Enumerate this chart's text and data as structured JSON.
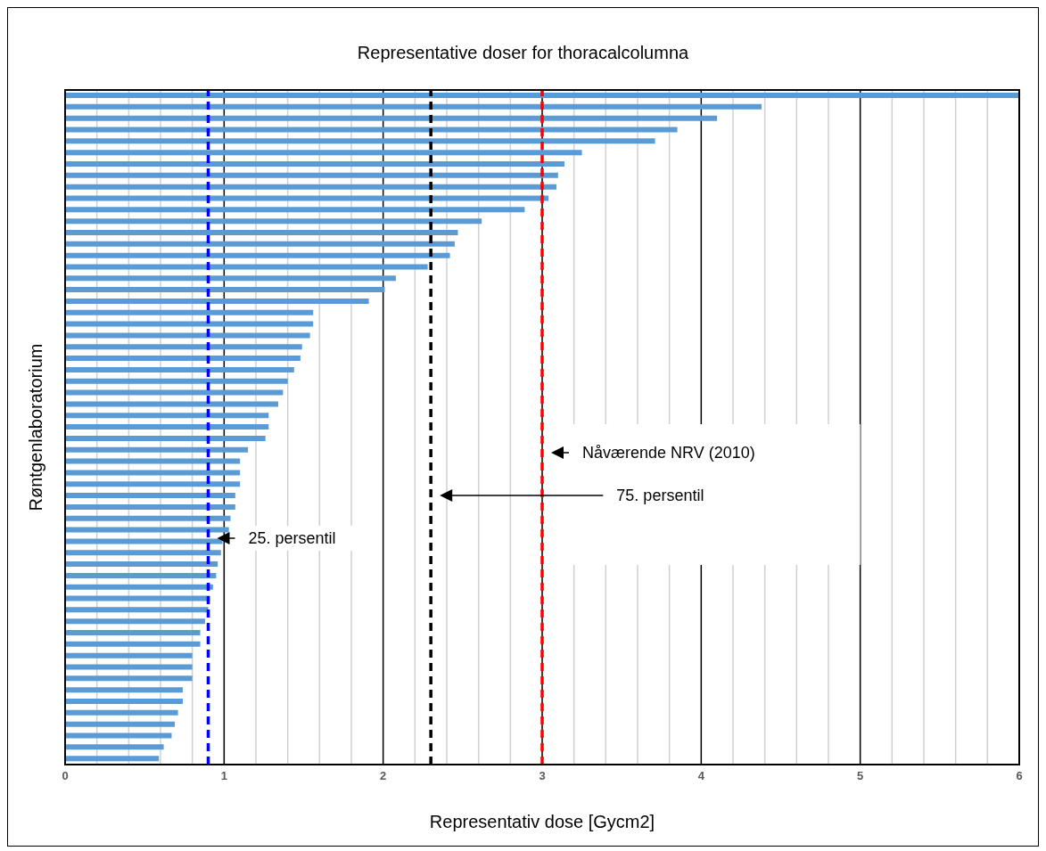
{
  "chart_data": {
    "type": "bar",
    "orientation": "horizontal",
    "title": "Representative doser for thoracalcolumna",
    "xlabel": "Representativ dose [Gycm2]",
    "ylabel": "Røntgenlaboratorium",
    "categories": [
      null,
      null,
      null,
      null,
      null,
      null,
      null,
      null,
      null,
      null,
      null,
      null,
      null,
      null,
      null,
      null,
      null,
      null,
      null,
      null,
      null,
      null,
      null,
      null,
      null,
      null,
      null,
      null,
      null,
      null,
      null,
      null,
      null,
      null,
      null,
      null,
      null,
      null,
      null,
      null,
      null,
      null,
      null,
      null,
      null,
      null,
      null,
      null,
      null,
      null,
      null,
      null,
      null,
      null,
      null,
      null,
      null,
      null,
      null
    ],
    "values": [
      6.0,
      4.38,
      4.1,
      3.85,
      3.71,
      3.25,
      3.14,
      3.1,
      3.09,
      3.04,
      2.89,
      2.62,
      2.47,
      2.45,
      2.42,
      2.28,
      2.08,
      2.01,
      1.91,
      1.56,
      1.56,
      1.54,
      1.49,
      1.48,
      1.44,
      1.4,
      1.37,
      1.34,
      1.28,
      1.28,
      1.26,
      1.15,
      1.1,
      1.1,
      1.1,
      1.07,
      1.07,
      1.04,
      1.03,
      0.99,
      0.98,
      0.96,
      0.95,
      0.93,
      0.91,
      0.9,
      0.88,
      0.85,
      0.85,
      0.8,
      0.8,
      0.8,
      0.74,
      0.74,
      0.71,
      0.69,
      0.67,
      0.62,
      0.59
    ],
    "color": "#5b9bd5",
    "xlim": [
      0,
      6
    ],
    "xticks": [
      0,
      {
        "value": 0.2,
        "label": null
      },
      {
        "value": 0.4,
        "label": null
      },
      {
        "value": 0.6,
        "label": null
      },
      {
        "value": 0.8,
        "label": null
      },
      1,
      {
        "value": 1.2,
        "label": null
      },
      {
        "value": 1.4,
        "label": null
      },
      {
        "value": 1.6,
        "label": null
      },
      {
        "value": 1.8,
        "label": null
      },
      2,
      {
        "value": 2.2,
        "label": null
      },
      {
        "value": 2.4,
        "label": null
      },
      {
        "value": 2.6,
        "label": null
      },
      {
        "value": 2.8,
        "label": null
      },
      3,
      {
        "value": 3.2,
        "label": null
      },
      {
        "value": 3.4,
        "label": null
      },
      {
        "value": 3.6,
        "label": null
      },
      {
        "value": 3.8,
        "label": null
      },
      4,
      {
        "value": 4.2,
        "label": null
      },
      {
        "value": 4.4,
        "label": null
      },
      {
        "value": 4.6,
        "label": null
      },
      {
        "value": 4.8,
        "label": null
      },
      5,
      {
        "value": 5.2,
        "label": null
      },
      {
        "value": 5.4,
        "label": null
      },
      {
        "value": 5.6,
        "label": null
      },
      {
        "value": 5.8,
        "label": null
      },
      6
    ],
    "grid": "x",
    "ref_lines": [
      {
        "axis": "x",
        "value": 3.0,
        "label": "Nåværende NRV (2010)",
        "color": "#ff0000",
        "line_style": "dashed"
      },
      {
        "axis": "x",
        "value": 2.3,
        "label": "75. persentil",
        "color": "#000000",
        "line_style": "dashed"
      },
      {
        "axis": "x",
        "value": 0.9,
        "label": "25. persentil",
        "color": "#0000ff",
        "line_style": "dashed"
      }
    ]
  }
}
